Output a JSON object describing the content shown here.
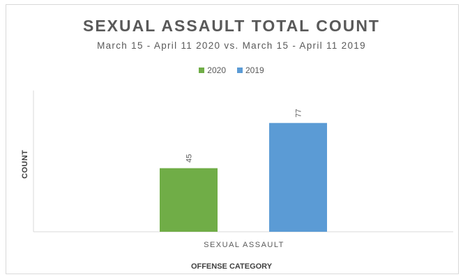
{
  "chart_data": {
    "type": "bar",
    "title": "SEXUAL ASSAULT TOTAL COUNT",
    "subtitle": "March 15 - April 11 2020 vs. March 15 - April 11 2019",
    "xlabel": "OFFENSE CATEGORY",
    "ylabel": "COUNT",
    "categories": [
      "SEXUAL ASSAULT"
    ],
    "series": [
      {
        "name": "2020",
        "values": [
          45
        ],
        "color": "#70ad47"
      },
      {
        "name": "2019",
        "values": [
          77
        ],
        "color": "#5b9bd5"
      }
    ],
    "ylim": [
      0,
      100
    ],
    "grid": false,
    "legend": "top-center",
    "data_label_rotation": "vertical"
  }
}
